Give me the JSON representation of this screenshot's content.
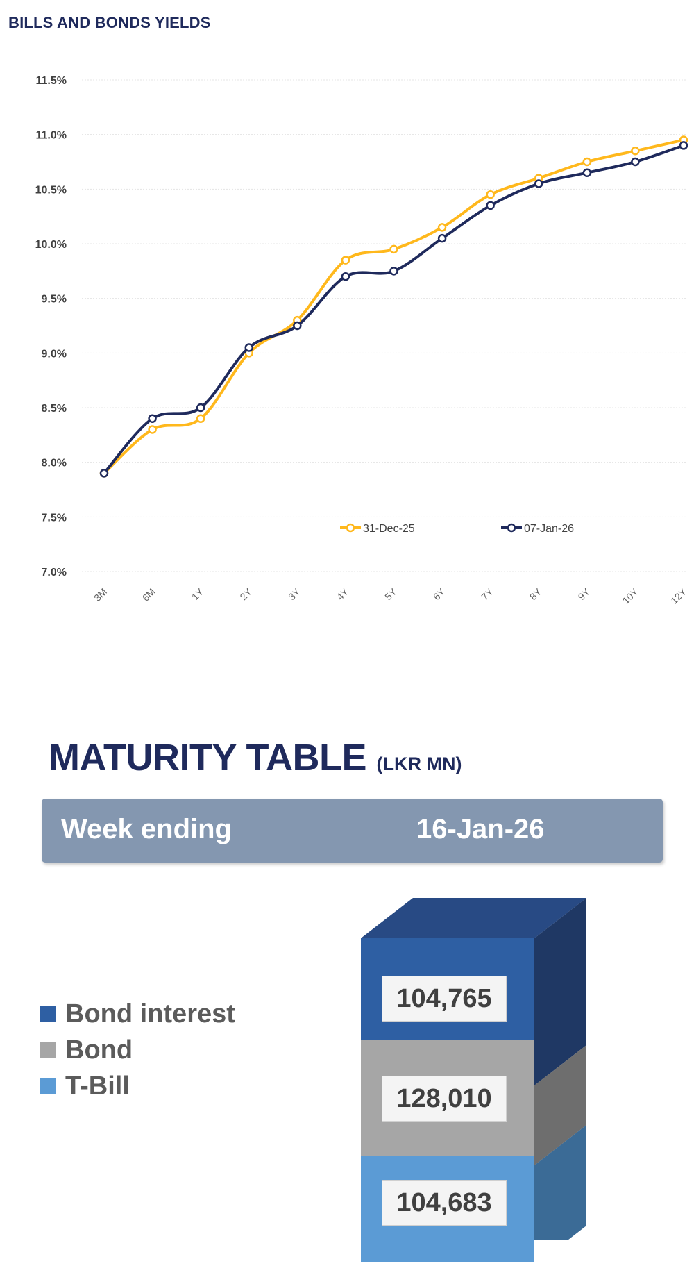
{
  "yields": {
    "title": "BILLS AND BONDS YIELDS"
  },
  "chart_data": {
    "type": "line",
    "title": "BILLS AND BONDS YIELDS",
    "xlabel": "",
    "ylabel": "",
    "categories": [
      "3M",
      "6M",
      "1Y",
      "2Y",
      "3Y",
      "4Y",
      "5Y",
      "6Y",
      "7Y",
      "8Y",
      "9Y",
      "10Y",
      "12Y"
    ],
    "ylim": [
      7.0,
      11.5
    ],
    "yticks": [
      "7.0%",
      "7.5%",
      "8.0%",
      "8.5%",
      "9.0%",
      "9.5%",
      "10.0%",
      "10.5%",
      "11.0%",
      "11.5%"
    ],
    "grid": true,
    "legend_position": "bottom-right",
    "series": [
      {
        "name": "31-Dec-25",
        "color": "#ffb81c",
        "values": [
          7.9,
          8.3,
          8.4,
          9.0,
          9.3,
          9.85,
          9.95,
          10.15,
          10.45,
          10.6,
          10.75,
          10.85,
          10.95
        ]
      },
      {
        "name": "07-Jan-26",
        "color": "#1f2a5c",
        "values": [
          7.9,
          8.4,
          8.5,
          9.05,
          9.25,
          9.7,
          9.75,
          10.05,
          10.35,
          10.55,
          10.65,
          10.75,
          10.9
        ]
      }
    ]
  },
  "maturity": {
    "title": "MATURITY TABLE",
    "unit": "(LKR MN)",
    "week_label": "Week ending",
    "week_date": "16-Jan-26",
    "legend": [
      {
        "label": "Bond interest",
        "color": "#2e5fa3"
      },
      {
        "label": "Bond",
        "color": "#a6a6a6"
      },
      {
        "label": "T-Bill",
        "color": "#5b9bd5"
      }
    ],
    "stack": [
      {
        "label": "Bond interest",
        "value": "104,765",
        "front": "#2e5fa3",
        "side": "#1f3864",
        "top": "#284a84"
      },
      {
        "label": "Bond",
        "value": "128,010",
        "front": "#a6a6a6",
        "side": "#6e6e6e",
        "top": "#8f8f8f"
      },
      {
        "label": "T-Bill",
        "value": "104,683",
        "front": "#5b9bd5",
        "side": "#3b6b96",
        "top": "#4f8ac0"
      }
    ]
  }
}
